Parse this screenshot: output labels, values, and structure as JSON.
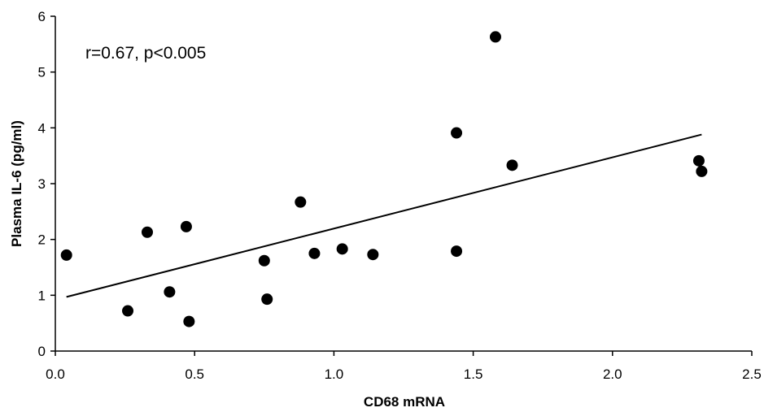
{
  "chart_data": {
    "type": "scatter",
    "title": "",
    "xlabel": "CD68 mRNA",
    "ylabel": "Plasma IL-6 (pg/ml)",
    "annotation": "r=0.67, p<0.005",
    "xlim": [
      0,
      2.5
    ],
    "ylim": [
      0,
      6
    ],
    "xticks": [
      "0.0",
      "0.5",
      "1.0",
      "1.5",
      "2.0",
      "2.5"
    ],
    "yticks": [
      "0",
      "1",
      "2",
      "3",
      "4",
      "5",
      "6"
    ],
    "grid": false,
    "legend": "none",
    "points": [
      {
        "x": 0.04,
        "y": 1.72
      },
      {
        "x": 0.26,
        "y": 0.72
      },
      {
        "x": 0.33,
        "y": 2.13
      },
      {
        "x": 0.41,
        "y": 1.06
      },
      {
        "x": 0.47,
        "y": 2.23
      },
      {
        "x": 0.48,
        "y": 0.53
      },
      {
        "x": 0.75,
        "y": 1.62
      },
      {
        "x": 0.76,
        "y": 0.93
      },
      {
        "x": 0.88,
        "y": 2.67
      },
      {
        "x": 0.93,
        "y": 1.75
      },
      {
        "x": 1.03,
        "y": 1.83
      },
      {
        "x": 1.14,
        "y": 1.73
      },
      {
        "x": 1.44,
        "y": 3.91
      },
      {
        "x": 1.44,
        "y": 1.79
      },
      {
        "x": 1.58,
        "y": 5.63
      },
      {
        "x": 1.64,
        "y": 3.33
      },
      {
        "x": 2.31,
        "y": 3.41
      },
      {
        "x": 2.32,
        "y": 3.22
      }
    ],
    "trendline": {
      "x": [
        0.04,
        2.32
      ],
      "y": [
        0.97,
        3.88
      ]
    }
  }
}
